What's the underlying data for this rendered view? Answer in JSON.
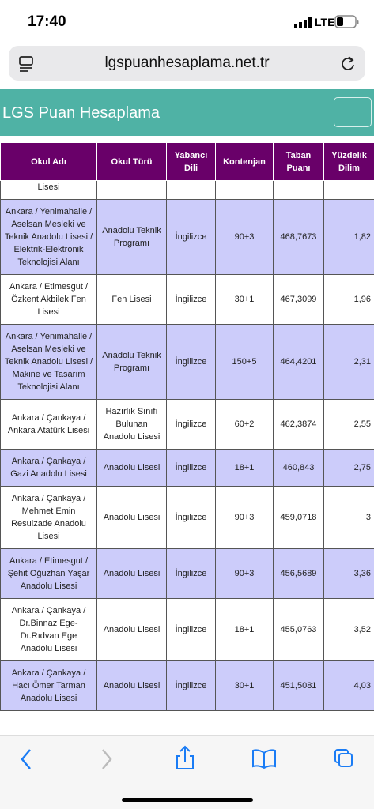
{
  "status_bar": {
    "time": "17:40",
    "network": "LTE"
  },
  "address_bar": {
    "url": "lgspuanhesaplama.net.tr"
  },
  "site_header": {
    "title": "LGS Puan Hesaplama"
  },
  "table": {
    "columns": [
      "Okul Adı",
      "Okul Türü",
      "Yabancı Dili",
      "Kontenjan",
      "Taban Puanı",
      "Yüzdelik Dilim"
    ],
    "rows": [
      [
        "Lisesi"
      ],
      [
        "Ankara / Yenimahalle / Aselsan Mesleki ve Teknik Anadolu Lisesi / Elektrik-Elektronik Teknolojisi Alanı",
        "Anadolu Teknik Programı",
        "İngilizce",
        "90+3",
        "468,7673",
        "1,82"
      ],
      [
        "Ankara / Etimesgut / Özkent Akbilek Fen Lisesi",
        "Fen Lisesi",
        "İngilizce",
        "30+1",
        "467,3099",
        "1,96"
      ],
      [
        "Ankara / Yenimahalle / Aselsan Mesleki ve Teknik Anadolu Lisesi / Makine ve Tasarım Teknolojisi Alanı",
        "Anadolu Teknik Programı",
        "İngilizce",
        "150+5",
        "464,4201",
        "2,31"
      ],
      [
        "Ankara / Çankaya / Ankara Atatürk Lisesi",
        "Hazırlık Sınıfı Bulunan Anadolu Lisesi",
        "İngilizce",
        "60+2",
        "462,3874",
        "2,55"
      ],
      [
        "Ankara / Çankaya / Gazi Anadolu Lisesi",
        "Anadolu Lisesi",
        "İngilizce",
        "18+1",
        "460,843",
        "2,75"
      ],
      [
        "Ankara / Çankaya / Mehmet Emin Resulzade Anadolu Lisesi",
        "Anadolu Lisesi",
        "İngilizce",
        "90+3",
        "459,0718",
        "3"
      ],
      [
        "Ankara / Etimesgut / Şehit Oğuzhan Yaşar Anadolu Lisesi",
        "Anadolu Lisesi",
        "İngilizce",
        "90+3",
        "456,5689",
        "3,36"
      ],
      [
        "Ankara / Çankaya / Dr.Binnaz Ege-Dr.Rıdvan Ege Anadolu Lisesi",
        "Anadolu Lisesi",
        "İngilizce",
        "18+1",
        "455,0763",
        "3,52"
      ],
      [
        "Ankara / Çankaya / Hacı Ömer Tarman Anadolu Lisesi",
        "Anadolu Lisesi",
        "İngilizce",
        "30+1",
        "451,5081",
        "4,03"
      ]
    ]
  }
}
